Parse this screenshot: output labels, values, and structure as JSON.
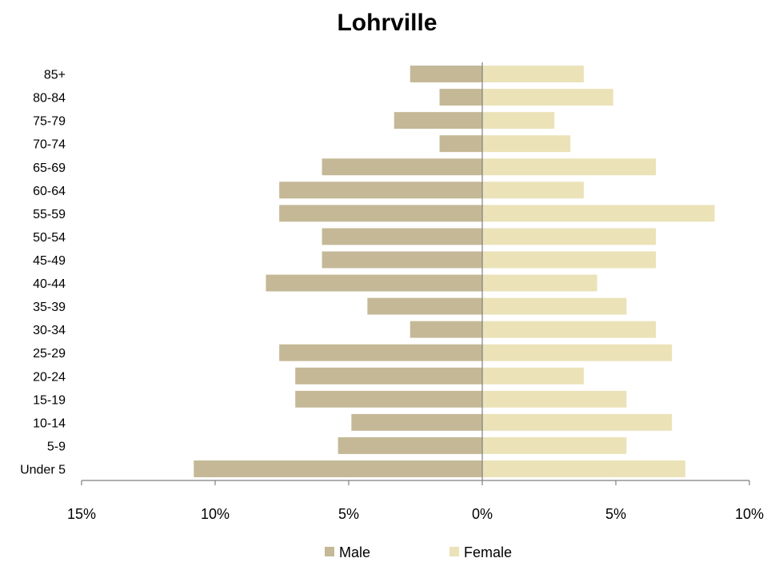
{
  "chart_data": {
    "type": "bar",
    "orientation": "horizontal",
    "title": "Lohrville",
    "xlabel": "",
    "ylabel": "",
    "categories": [
      "Under 5",
      "5-9",
      "10-14",
      "15-19",
      "20-24",
      "25-29",
      "30-34",
      "35-39",
      "40-44",
      "45-49",
      "50-54",
      "55-59",
      "60-64",
      "65-69",
      "70-74",
      "75-79",
      "80-84",
      "85+"
    ],
    "series": [
      {
        "name": "Male",
        "color": "#c4b896",
        "values": [
          -10.8,
          -5.4,
          -4.9,
          -7.0,
          -7.0,
          -7.6,
          -2.7,
          -4.3,
          -8.1,
          -6.0,
          -6.0,
          -7.6,
          -7.6,
          -6.0,
          -1.6,
          -3.3,
          -1.6,
          -2.7
        ]
      },
      {
        "name": "Female",
        "color": "#ebe2b8",
        "values": [
          7.6,
          5.4,
          7.1,
          5.4,
          3.8,
          7.1,
          6.5,
          5.4,
          4.3,
          6.5,
          6.5,
          8.7,
          3.8,
          6.5,
          3.3,
          2.7,
          4.9,
          3.8
        ]
      }
    ],
    "xlim": [
      -15,
      10
    ],
    "x_ticks": [
      -15,
      -10,
      -5,
      0,
      5,
      10
    ],
    "x_tick_labels": [
      "15%",
      "10%",
      "5%",
      "0%",
      "5%",
      "10%"
    ],
    "legend": {
      "position": "bottom",
      "entries": [
        "Male",
        "Female"
      ]
    },
    "grid": false
  }
}
